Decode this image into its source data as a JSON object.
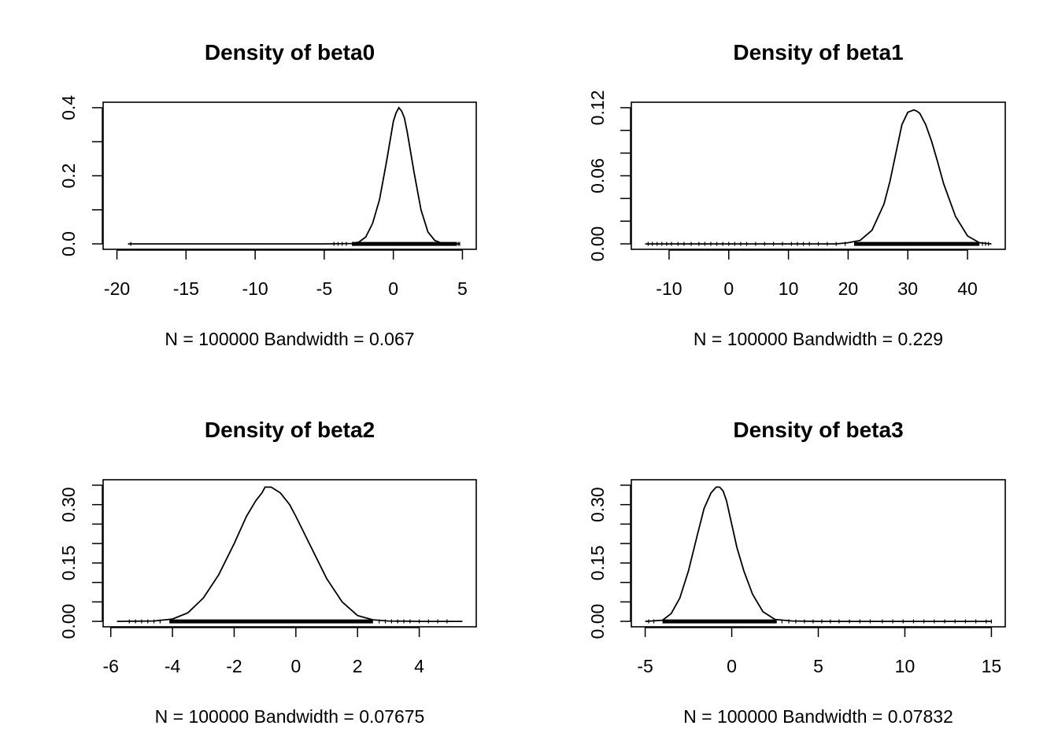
{
  "chart_data": [
    {
      "type": "line",
      "title": "Density of beta0",
      "xlabel": "N = 100000   Bandwidth = 0.067",
      "xlim": [
        -20,
        5
      ],
      "ylim": [
        0,
        0.4
      ],
      "xticks": [
        -20,
        -15,
        -10,
        -5,
        0,
        5
      ],
      "xtick_labels": [
        "-20",
        "-15",
        "-10",
        "-5",
        "0",
        "5"
      ],
      "yticks": [
        0,
        0.1,
        0.2,
        0.3,
        0.4
      ],
      "ytick_labels": [
        "0.0",
        "",
        "0.2",
        "",
        "0.4"
      ],
      "grid": false,
      "x": [
        -19.2,
        -5,
        -3,
        -2.5,
        -2,
        -1.5,
        -1,
        -0.5,
        0,
        0.2,
        0.4,
        0.6,
        0.8,
        1,
        1.5,
        2,
        2.5,
        3,
        3.5,
        4.8
      ],
      "y": [
        0,
        0,
        0.001,
        0.005,
        0.02,
        0.06,
        0.13,
        0.24,
        0.36,
        0.385,
        0.4,
        0.39,
        0.37,
        0.33,
        0.21,
        0.1,
        0.035,
        0.01,
        0.002,
        0
      ],
      "rug_dense": [
        -3,
        4.6
      ],
      "rug_sparse": [
        -19,
        -4.3,
        -4.0,
        -3.7,
        -3.4,
        4.7,
        4.8
      ]
    },
    {
      "type": "line",
      "title": "Density of beta1",
      "xlabel": "N = 100000   Bandwidth = 0.229",
      "xlim": [
        -14,
        44
      ],
      "ylim": [
        0,
        0.12
      ],
      "xticks": [
        -10,
        0,
        10,
        20,
        30,
        40
      ],
      "xtick_labels": [
        "-10",
        "0",
        "10",
        "20",
        "30",
        "40"
      ],
      "yticks": [
        0,
        0.02,
        0.04,
        0.06,
        0.08,
        0.1,
        0.12
      ],
      "ytick_labels": [
        "0.00",
        "",
        "",
        "0.06",
        "",
        "",
        "0.12"
      ],
      "grid": false,
      "x": [
        -14,
        18,
        20,
        22,
        24,
        26,
        27,
        28,
        29,
        30,
        30.5,
        31,
        31.5,
        32,
        33,
        34,
        35,
        36,
        38,
        40,
        42,
        44
      ],
      "y": [
        0,
        0,
        0.001,
        0.003,
        0.012,
        0.035,
        0.055,
        0.08,
        0.105,
        0.116,
        0.117,
        0.118,
        0.117,
        0.115,
        0.105,
        0.09,
        0.072,
        0.053,
        0.024,
        0.007,
        0.001,
        0
      ],
      "rug_dense": [
        21,
        42
      ],
      "rug_sparse": [
        -13.5,
        -12.8,
        -12,
        -11.2,
        -10.4,
        -9.6,
        -8.5,
        -7.5,
        -6.3,
        -5,
        -4,
        -3,
        -2,
        -1,
        0,
        1,
        2,
        3,
        4.5,
        6,
        7.5,
        9,
        10.5,
        11.5,
        12.5,
        13.5,
        15,
        16.5,
        18,
        19.5,
        42.5,
        43,
        43.5
      ]
    },
    {
      "type": "line",
      "title": "Density of beta2",
      "xlabel": "N = 100000   Bandwidth = 0.07675",
      "xlim": [
        -5.8,
        5.4
      ],
      "ylim": [
        0,
        0.35
      ],
      "xticks": [
        -6,
        -4,
        -2,
        0,
        2,
        4
      ],
      "xtick_labels": [
        "-6",
        "-4",
        "-2",
        "0",
        "2",
        "4"
      ],
      "yticks": [
        0,
        0.05,
        0.1,
        0.15,
        0.2,
        0.25,
        0.3,
        0.35
      ],
      "ytick_labels": [
        "0.00",
        "",
        "",
        "0.15",
        "",
        "",
        "0.30",
        ""
      ],
      "grid": false,
      "x": [
        -5.8,
        -4.6,
        -4,
        -3.5,
        -3,
        -2.5,
        -2,
        -1.6,
        -1.3,
        -1.1,
        -1,
        -0.8,
        -0.5,
        -0.2,
        0,
        0.5,
        1,
        1.5,
        2,
        2.5,
        3,
        4,
        5.4
      ],
      "y": [
        0,
        0.001,
        0.006,
        0.022,
        0.06,
        0.12,
        0.2,
        0.27,
        0.31,
        0.33,
        0.345,
        0.345,
        0.33,
        0.3,
        0.27,
        0.19,
        0.11,
        0.05,
        0.015,
        0.004,
        0.001,
        0,
        0
      ],
      "rug_dense": [
        -4.1,
        2.5
      ],
      "rug_sparse": [
        -5.4,
        -5.2,
        -5.0,
        -4.8,
        -4.6,
        -4.4,
        2.7,
        2.9,
        3.1,
        3.3,
        3.5,
        3.7,
        4.0,
        4.3,
        4.6,
        4.9
      ]
    },
    {
      "type": "line",
      "title": "Density of beta3",
      "xlabel": "N = 100000   Bandwidth = 0.07832",
      "xlim": [
        -5,
        15
      ],
      "ylim": [
        0,
        0.35
      ],
      "xticks": [
        -5,
        0,
        5,
        10,
        15
      ],
      "xtick_labels": [
        "-5",
        "0",
        "5",
        "10",
        "15"
      ],
      "yticks": [
        0,
        0.05,
        0.1,
        0.15,
        0.2,
        0.25,
        0.3,
        0.35
      ],
      "ytick_labels": [
        "0.00",
        "",
        "",
        "0.15",
        "",
        "",
        "0.30",
        ""
      ],
      "grid": false,
      "x": [
        -5,
        -4,
        -3.5,
        -3,
        -2.5,
        -2,
        -1.6,
        -1.2,
        -0.9,
        -0.7,
        -0.5,
        -0.3,
        0,
        0.3,
        0.7,
        1.2,
        1.8,
        2.5,
        3.5,
        5,
        15
      ],
      "y": [
        0,
        0.003,
        0.02,
        0.06,
        0.13,
        0.22,
        0.29,
        0.33,
        0.345,
        0.345,
        0.335,
        0.31,
        0.25,
        0.19,
        0.13,
        0.07,
        0.025,
        0.005,
        0.001,
        0,
        0
      ],
      "rug_dense": [
        -4,
        2.6
      ],
      "rug_sparse": [
        -4.8,
        -4.5,
        2.9,
        3.3,
        3.7,
        4.2,
        4.7,
        5.2,
        5.7,
        6.2,
        6.8,
        7.4,
        8.0,
        8.7,
        9.3,
        9.9,
        10.5,
        11.1,
        11.7,
        12.3,
        12.9,
        13.5,
        14.1,
        14.7,
        15
      ]
    }
  ]
}
